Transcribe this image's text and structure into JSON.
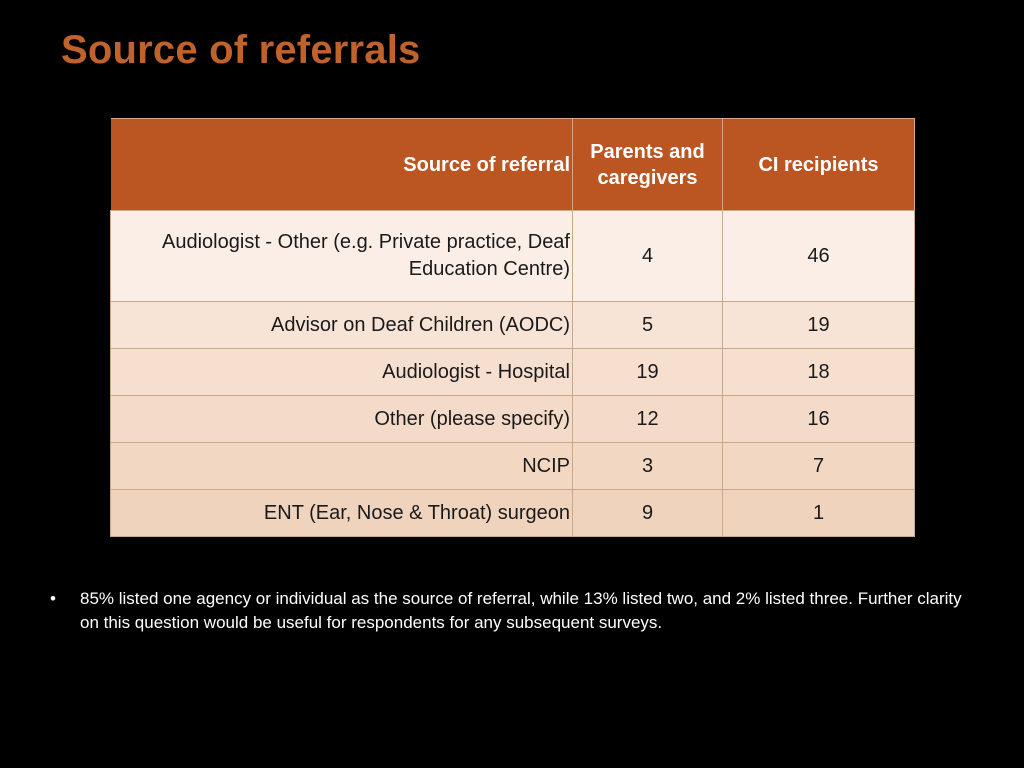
{
  "slide": {
    "title": "Source of referrals"
  },
  "table": {
    "headers": {
      "source": "Source of referral",
      "parents": "Parents and caregivers",
      "ci": "CI recipients"
    },
    "rows": [
      {
        "source": "Audiologist - Other (e.g. Private practice, Deaf Education Centre)",
        "parents": "4",
        "ci": "46"
      },
      {
        "source": "Advisor on Deaf Children (AODC)",
        "parents": "5",
        "ci": "19"
      },
      {
        "source": "Audiologist - Hospital",
        "parents": "19",
        "ci": "18"
      },
      {
        "source": "Other (please specify)",
        "parents": "12",
        "ci": "16"
      },
      {
        "source": "NCIP",
        "parents": "3",
        "ci": "7"
      },
      {
        "source": "ENT (Ear, Nose & Throat) surgeon",
        "parents": "9",
        "ci": "1"
      }
    ]
  },
  "notes": [
    {
      "bullet": "•",
      "text": "85% listed one agency or individual as the source of referral, while 13% listed two, and 2% listed three. Further clarity on this question would be useful for respondents for any subsequent surveys."
    }
  ],
  "colors": {
    "title": "#c0622b",
    "header_bg": "#bb5521",
    "background": "#000000"
  }
}
